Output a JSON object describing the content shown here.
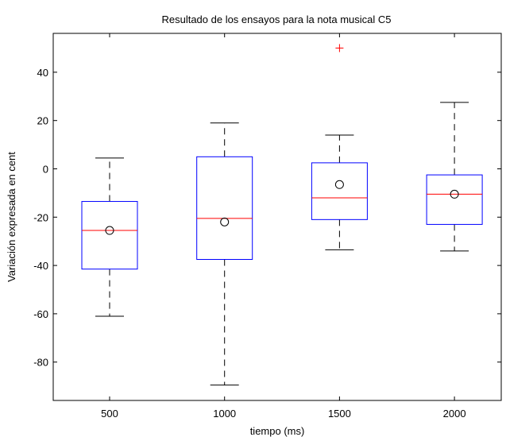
{
  "chart_data": {
    "type": "boxplot",
    "title": "Resultado de los ensayos para la nota musical C5",
    "xlabel": "tiempo (ms)",
    "ylabel": "Variación expresada en cent",
    "categories": [
      "500",
      "1000",
      "1500",
      "2000"
    ],
    "yticks": [
      -80,
      -60,
      -40,
      -20,
      0,
      20,
      40
    ],
    "ylim": [
      -96,
      56
    ],
    "grid": false,
    "series": [
      {
        "values": [
          {
            "whisker_low": -61,
            "q1": -41.5,
            "median": -25.5,
            "q3": -13.5,
            "whisker_high": 4.5,
            "mean": -25.5,
            "outliers": []
          },
          {
            "whisker_low": -89.5,
            "q1": -37.5,
            "median": -20.5,
            "q3": 5,
            "whisker_high": 19,
            "mean": -22,
            "outliers": []
          },
          {
            "whisker_low": -33.5,
            "q1": -21,
            "median": -12,
            "q3": 2.5,
            "whisker_high": 14,
            "mean": -6.5,
            "outliers": [
              50
            ]
          },
          {
            "whisker_low": -34,
            "q1": -23,
            "median": -10.5,
            "q3": -2.5,
            "whisker_high": 27.5,
            "mean": -10.5,
            "outliers": []
          }
        ]
      }
    ],
    "colors": {
      "box": "#0000ff",
      "median": "#ff0000",
      "whisker": "#000000",
      "outlier": "#ff0000",
      "mean_marker": "#000000",
      "axes": "#000000"
    }
  }
}
